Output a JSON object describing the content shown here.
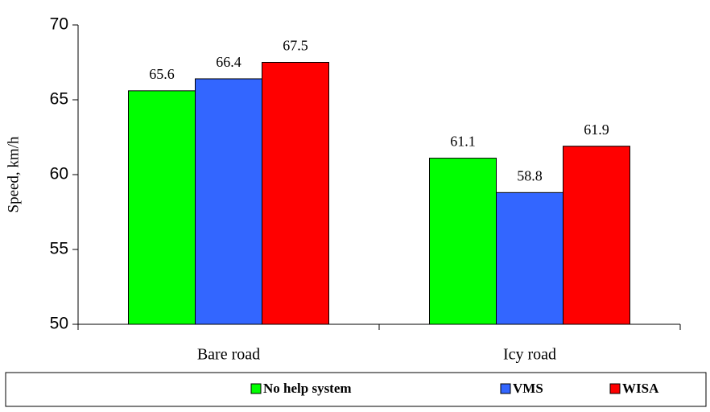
{
  "chart_data": {
    "type": "bar",
    "y_label": "Speed, km/h",
    "categories": [
      "Bare road",
      "Icy road"
    ],
    "series": [
      {
        "name": "No help system",
        "color": "#00ff00",
        "values": [
          65.6,
          61.1
        ]
      },
      {
        "name": "VMS",
        "color": "#3366ff",
        "values": [
          66.4,
          58.8
        ]
      },
      {
        "name": "WISA",
        "color": "#ff0000",
        "values": [
          67.5,
          61.9
        ]
      }
    ],
    "ylim": [
      50,
      70
    ],
    "yticks": [
      50,
      55,
      60,
      65,
      70
    ]
  }
}
